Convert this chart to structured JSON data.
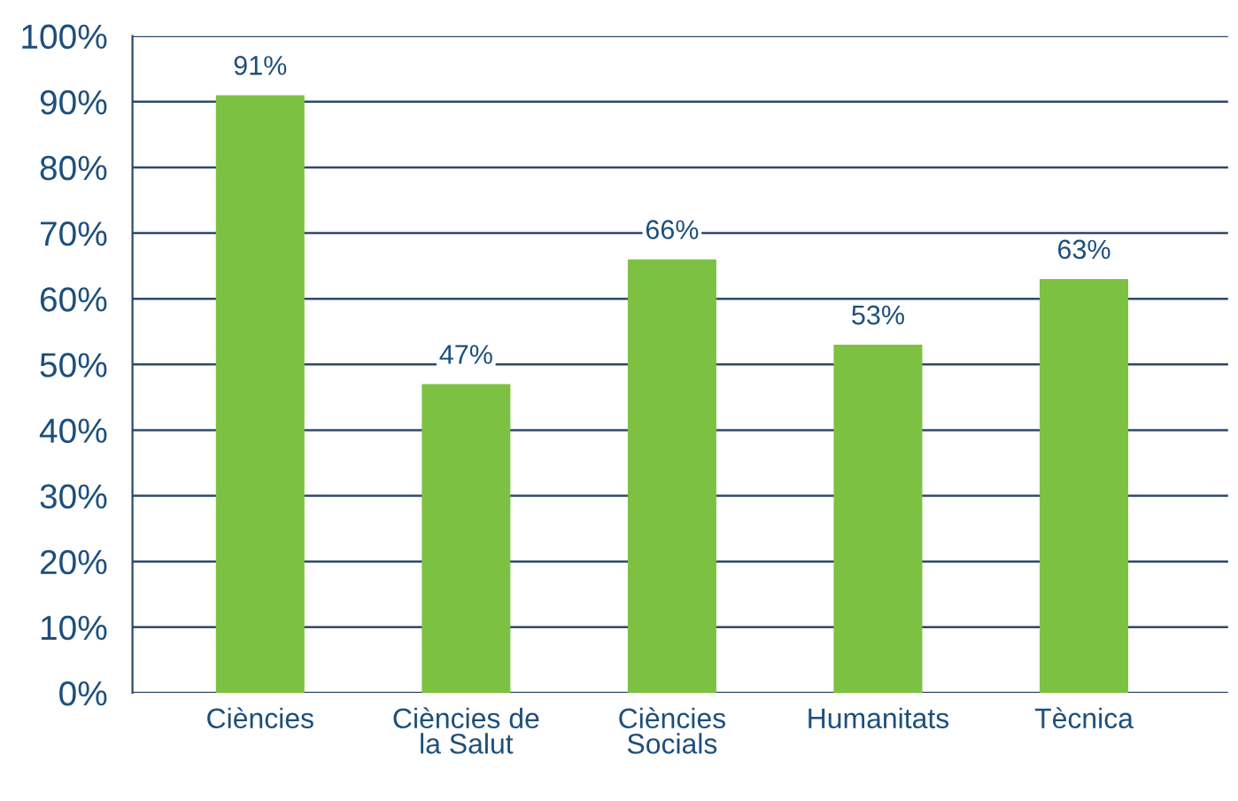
{
  "chart_data": {
    "type": "bar",
    "categories": [
      "Ciències",
      "Ciències de la Salut",
      "Ciències Socials",
      "Humanitats",
      "Tècnica"
    ],
    "values": [
      91,
      47,
      66,
      53,
      63
    ],
    "color": "#7dc142",
    "value_labels": [
      "91%",
      "47%",
      "66%",
      "53%",
      "63%"
    ],
    "grid": "y",
    "ylim": [
      0,
      100
    ],
    "yticks": [
      {
        "value": 0,
        "label": "0%"
      },
      {
        "value": 10,
        "label": "10%"
      },
      {
        "value": 20,
        "label": "20%"
      },
      {
        "value": 30,
        "label": "30%"
      },
      {
        "value": 40,
        "label": "40%"
      },
      {
        "value": 50,
        "label": "50%"
      },
      {
        "value": 60,
        "label": "60%"
      },
      {
        "value": 70,
        "label": "70%"
      },
      {
        "value": 80,
        "label": "80%"
      },
      {
        "value": 90,
        "label": "90%"
      },
      {
        "value": 100,
        "label": "100%"
      }
    ]
  }
}
